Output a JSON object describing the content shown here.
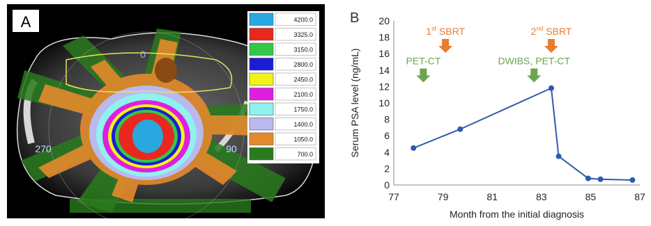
{
  "panel_a": {
    "label": "A",
    "angle_labels": {
      "top": "0",
      "left": "270",
      "right": "90"
    },
    "legend": [
      {
        "value": "4200.0",
        "color": "#29a8e0"
      },
      {
        "value": "3325.0",
        "color": "#e8281e"
      },
      {
        "value": "3150.0",
        "color": "#33c84a"
      },
      {
        "value": "2800.0",
        "color": "#1c1cd6"
      },
      {
        "value": "2450.0",
        "color": "#f2f21a"
      },
      {
        "value": "2100.0",
        "color": "#e01ee0"
      },
      {
        "value": "1750.0",
        "color": "#8ef2ef"
      },
      {
        "value": "1400.0",
        "color": "#b9b9ee"
      },
      {
        "value": "1050.0",
        "color": "#e58a2c"
      },
      {
        "value": "700.0",
        "color": "#2a7a1e"
      }
    ]
  },
  "chart_data": {
    "type": "line",
    "panel_label": "B",
    "xlabel": "Month from the initial diagnosis",
    "ylabel": "Serum PSA level (ng/mL)",
    "xlim": [
      77,
      87
    ],
    "ylim": [
      0,
      20
    ],
    "xticks": [
      77,
      79,
      81,
      83,
      85,
      87
    ],
    "yticks": [
      0,
      2,
      4,
      6,
      8,
      10,
      12,
      14,
      16,
      18,
      20
    ],
    "grid": false,
    "series": [
      {
        "color": "#2e5aac",
        "x": [
          77.8,
          79.7,
          83.4,
          83.7,
          84.9,
          85.4,
          86.7
        ],
        "y": [
          4.5,
          6.8,
          11.8,
          3.5,
          0.8,
          0.7,
          0.6
        ]
      }
    ],
    "annotations": [
      {
        "text": "1",
        "sup": "st",
        "suffix": " SBRT",
        "x": 79.1,
        "y": 18.3,
        "color": "#e87d2e"
      },
      {
        "text": "2",
        "sup": "nd",
        "suffix": " SBRT",
        "x": 83.4,
        "y": 18.3,
        "color": "#e87d2e"
      },
      {
        "text": "PET-CT",
        "x": 78.2,
        "y": 14.7,
        "color": "#6aa84f"
      },
      {
        "text": "DWIBS, PET-CT",
        "x": 82.7,
        "y": 14.7,
        "color": "#6aa84f"
      }
    ]
  }
}
